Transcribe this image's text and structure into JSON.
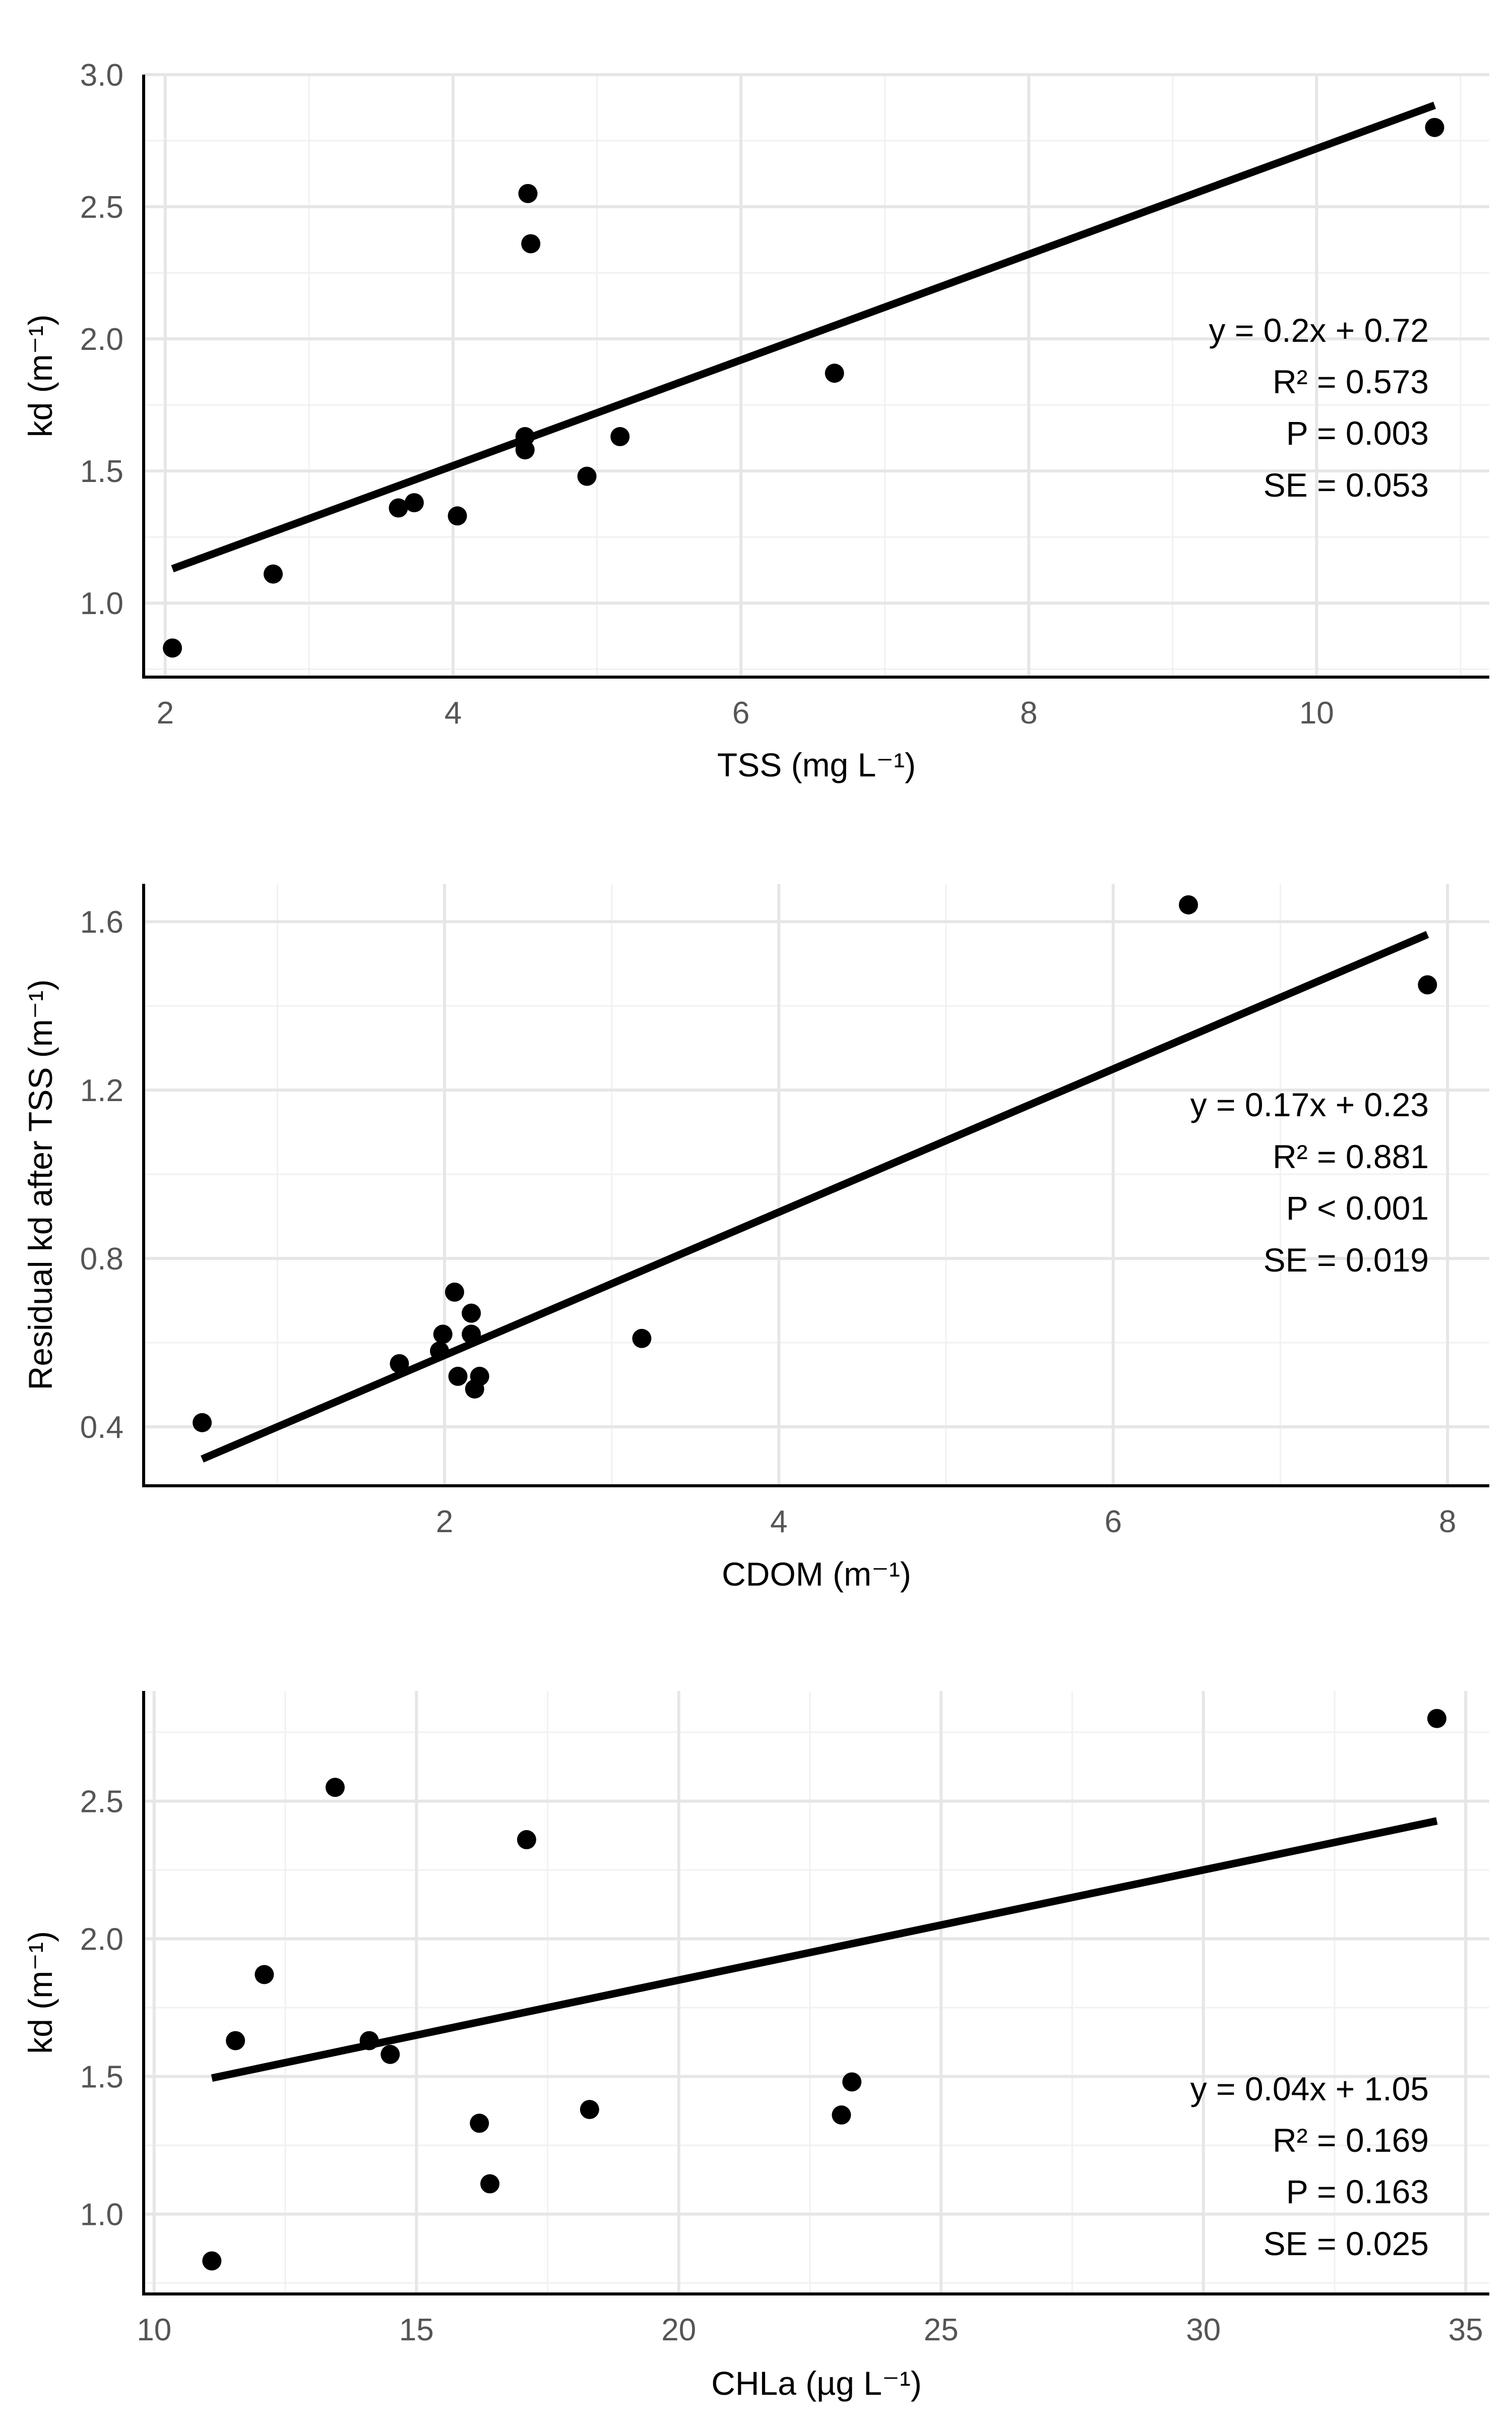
{
  "chart_data": [
    {
      "type": "scatter",
      "title": "",
      "xlabel": "TSS (mg L⁻¹)",
      "ylabel": "kd (m⁻¹)",
      "xlim": [
        1.85,
        11.2
      ],
      "ylim": [
        0.72,
        3.0
      ],
      "x_ticks": [
        2,
        4,
        6,
        8,
        10
      ],
      "x_tick_labels": [
        "2",
        "4",
        "6",
        "8",
        "10"
      ],
      "y_ticks": [
        1.0,
        1.5,
        2.0,
        2.5,
        3.0
      ],
      "y_tick_labels": [
        "1.0",
        "1.5",
        "2.0",
        "2.5",
        "3.0"
      ],
      "grid": true,
      "points": [
        {
          "x": 2.05,
          "y": 0.83
        },
        {
          "x": 2.75,
          "y": 1.11
        },
        {
          "x": 3.62,
          "y": 1.36
        },
        {
          "x": 3.73,
          "y": 1.38
        },
        {
          "x": 4.03,
          "y": 1.33
        },
        {
          "x": 4.5,
          "y": 1.58
        },
        {
          "x": 4.5,
          "y": 1.63
        },
        {
          "x": 4.52,
          "y": 2.55
        },
        {
          "x": 4.54,
          "y": 2.36
        },
        {
          "x": 4.93,
          "y": 1.48
        },
        {
          "x": 5.16,
          "y": 1.63
        },
        {
          "x": 6.65,
          "y": 1.87
        },
        {
          "x": 10.82,
          "y": 2.8
        }
      ],
      "fit": {
        "slope": 0.2,
        "intercept": 0.72,
        "x_start": 2.05,
        "x_end": 10.82
      },
      "annotations": [
        "y = 0.2x + 0.72",
        "R² = 0.573",
        "P = 0.003",
        "SE = 0.053"
      ]
    },
    {
      "type": "scatter",
      "title": "",
      "xlabel": "CDOM (m⁻¹)",
      "ylabel": "Residual kd after TSS (m⁻¹)",
      "xlim": [
        0.2,
        8.25
      ],
      "ylim": [
        0.26,
        1.69
      ],
      "x_ticks": [
        2,
        4,
        6,
        8
      ],
      "x_tick_labels": [
        "2",
        "4",
        "6",
        "8"
      ],
      "y_ticks": [
        0.4,
        0.8,
        1.2,
        1.6
      ],
      "y_tick_labels": [
        "0.4",
        "0.8",
        "1.2",
        "1.6"
      ],
      "grid": true,
      "points": [
        {
          "x": 0.55,
          "y": 0.41
        },
        {
          "x": 1.73,
          "y": 0.55
        },
        {
          "x": 1.97,
          "y": 0.58
        },
        {
          "x": 1.99,
          "y": 0.62
        },
        {
          "x": 2.06,
          "y": 0.72
        },
        {
          "x": 2.08,
          "y": 0.52
        },
        {
          "x": 2.16,
          "y": 0.67
        },
        {
          "x": 2.16,
          "y": 0.62
        },
        {
          "x": 2.18,
          "y": 0.49
        },
        {
          "x": 2.21,
          "y": 0.52
        },
        {
          "x": 3.18,
          "y": 0.61
        },
        {
          "x": 6.45,
          "y": 1.64
        },
        {
          "x": 7.88,
          "y": 1.45
        }
      ],
      "fit": {
        "slope": 0.17,
        "intercept": 0.23,
        "x_start": 0.55,
        "x_end": 7.88
      },
      "annotations": [
        "y = 0.17x + 0.23",
        "R² = 0.881",
        "P < 0.001",
        "SE = 0.019"
      ]
    },
    {
      "type": "scatter",
      "title": "",
      "xlabel": "CHLa (µg L⁻¹)",
      "ylabel": "kd (m⁻¹)",
      "xlim": [
        9.8,
        35.45
      ],
      "ylim": [
        0.71,
        2.9
      ],
      "x_ticks": [
        10,
        15,
        20,
        25,
        30,
        35
      ],
      "x_tick_labels": [
        "10",
        "15",
        "20",
        "25",
        "30",
        "35"
      ],
      "y_ticks": [
        1.0,
        1.5,
        2.0,
        2.5
      ],
      "y_tick_labels": [
        "1.0",
        "1.5",
        "2.0",
        "2.5"
      ],
      "grid": true,
      "points": [
        {
          "x": 11.1,
          "y": 0.83
        },
        {
          "x": 11.55,
          "y": 1.63
        },
        {
          "x": 12.1,
          "y": 1.87
        },
        {
          "x": 13.45,
          "y": 2.55
        },
        {
          "x": 14.1,
          "y": 1.63
        },
        {
          "x": 14.5,
          "y": 1.58
        },
        {
          "x": 16.2,
          "y": 1.33
        },
        {
          "x": 16.4,
          "y": 1.11
        },
        {
          "x": 17.1,
          "y": 2.36
        },
        {
          "x": 18.3,
          "y": 1.38
        },
        {
          "x": 23.1,
          "y": 1.36
        },
        {
          "x": 23.3,
          "y": 1.48
        },
        {
          "x": 34.45,
          "y": 2.8
        }
      ],
      "fit": {
        "slope": 0.04,
        "intercept": 1.05,
        "x_start": 11.1,
        "x_end": 34.45
      },
      "annotations": [
        "y = 0.04x + 1.05",
        "R² = 0.169",
        "P = 0.163",
        "SE = 0.025"
      ]
    }
  ]
}
